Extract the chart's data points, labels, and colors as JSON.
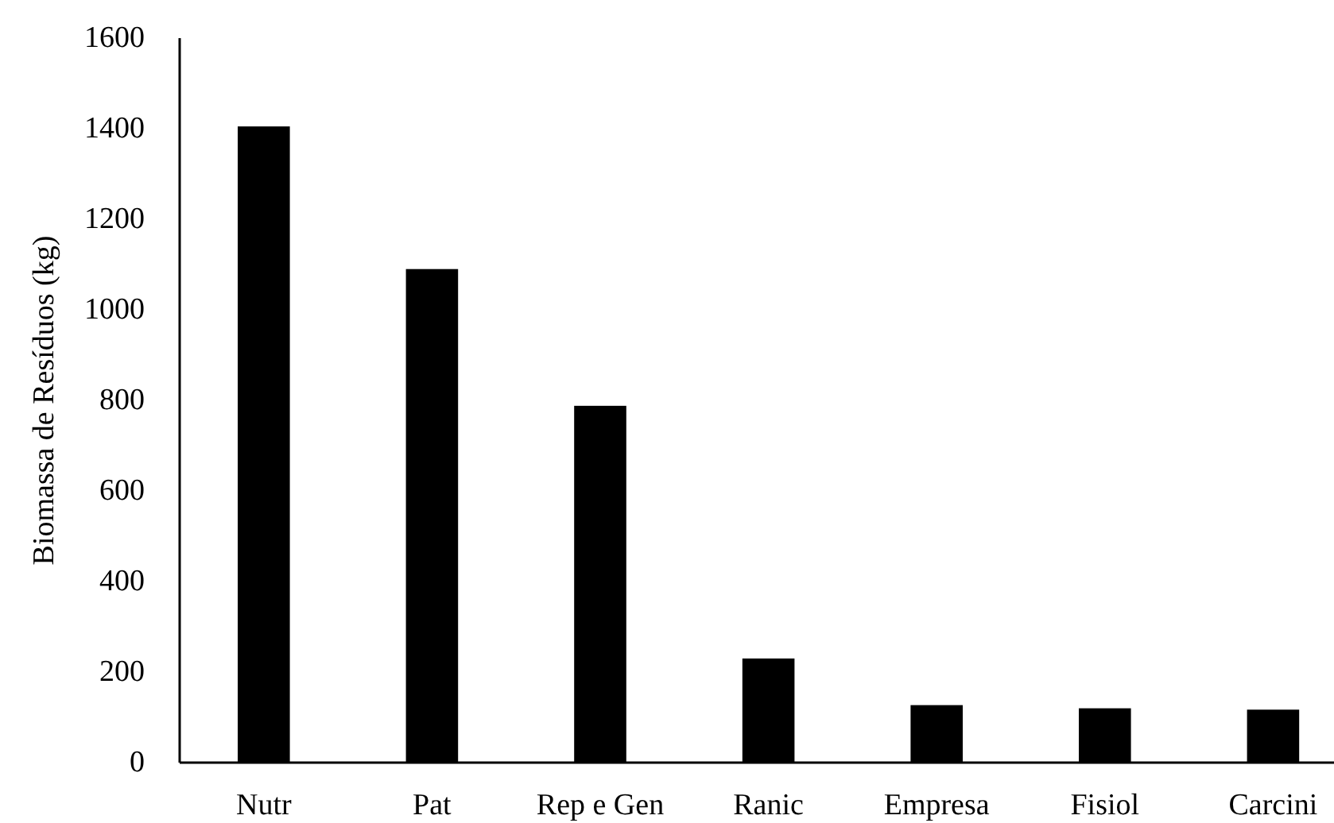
{
  "chart_data": {
    "type": "bar",
    "ylabel": "Biomassa de Resíduos (kg)",
    "categories": [
      "Nutr",
      "Pat",
      "Rep e Gen",
      "Ranic",
      "Empresa",
      "Fisiol",
      "Carcini"
    ],
    "values": [
      1405,
      1090,
      788,
      230,
      127,
      120,
      117
    ],
    "color": "#000000",
    "ylim": [
      0,
      1600
    ],
    "yticks": [
      0,
      200,
      400,
      600,
      800,
      1000,
      1200,
      1400,
      1600
    ],
    "grid": false
  }
}
